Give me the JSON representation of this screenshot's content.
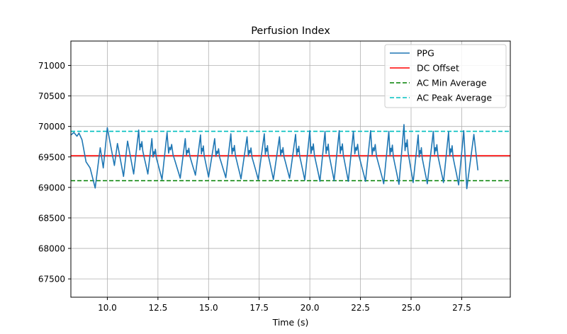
{
  "chart_data": {
    "type": "line",
    "title": "Perfusion Index",
    "xlabel": "Time (s)",
    "ylabel": "",
    "xlim": [
      8.2,
      29.9
    ],
    "ylim": [
      67200,
      71400
    ],
    "xticks": [
      10.0,
      12.5,
      15.0,
      17.5,
      20.0,
      22.5,
      25.0,
      27.5
    ],
    "xtick_labels": [
      "10.0",
      "12.5",
      "15.0",
      "17.5",
      "20.0",
      "22.5",
      "25.0",
      "27.5"
    ],
    "yticks": [
      67500,
      68000,
      68500,
      69000,
      69500,
      70000,
      70500,
      71000
    ],
    "ytick_labels": [
      "67500",
      "68000",
      "68500",
      "69000",
      "69500",
      "70000",
      "70500",
      "71000"
    ],
    "grid": true,
    "legend_position": "top-right",
    "colors": {
      "ppg": "#1f77b4",
      "dc_offset": "#ff0000",
      "ac_min": "#008000",
      "ac_peak": "#00bfbf"
    },
    "series": [
      {
        "name": "PPG",
        "style": "solid",
        "peaks": [
          {
            "t": 9.65,
            "v": 69650
          },
          {
            "t": 10.0,
            "v": 69980
          },
          {
            "t": 10.5,
            "v": 69720
          },
          {
            "t": 11.0,
            "v": 69760
          },
          {
            "t": 11.55,
            "v": 69940
          },
          {
            "t": 12.2,
            "v": 69800
          },
          {
            "t": 12.95,
            "v": 69900
          },
          {
            "t": 13.85,
            "v": 69800
          },
          {
            "t": 14.6,
            "v": 69860
          },
          {
            "t": 15.3,
            "v": 69800
          },
          {
            "t": 16.1,
            "v": 69880
          },
          {
            "t": 16.9,
            "v": 69830
          },
          {
            "t": 17.75,
            "v": 69880
          },
          {
            "t": 18.5,
            "v": 69830
          },
          {
            "t": 19.3,
            "v": 69870
          },
          {
            "t": 20.0,
            "v": 69930
          },
          {
            "t": 20.75,
            "v": 69920
          },
          {
            "t": 21.45,
            "v": 69930
          },
          {
            "t": 22.15,
            "v": 69920
          },
          {
            "t": 23.0,
            "v": 69930
          },
          {
            "t": 23.9,
            "v": 69920
          },
          {
            "t": 24.65,
            "v": 70030
          },
          {
            "t": 25.35,
            "v": 69860
          },
          {
            "t": 26.1,
            "v": 69920
          },
          {
            "t": 26.85,
            "v": 69910
          },
          {
            "t": 27.6,
            "v": 69930
          },
          {
            "t": 28.1,
            "v": 69870
          }
        ],
        "troughs": [
          {
            "t": 9.4,
            "v": 68990
          },
          {
            "t": 9.8,
            "v": 69320
          },
          {
            "t": 10.35,
            "v": 69360
          },
          {
            "t": 10.8,
            "v": 69180
          },
          {
            "t": 11.3,
            "v": 69220
          },
          {
            "t": 12.0,
            "v": 69220
          },
          {
            "t": 12.7,
            "v": 69130
          },
          {
            "t": 13.6,
            "v": 69150
          },
          {
            "t": 14.35,
            "v": 69200
          },
          {
            "t": 15.0,
            "v": 69170
          },
          {
            "t": 15.85,
            "v": 69160
          },
          {
            "t": 16.6,
            "v": 69140
          },
          {
            "t": 17.45,
            "v": 69130
          },
          {
            "t": 18.2,
            "v": 69130
          },
          {
            "t": 19.0,
            "v": 69150
          },
          {
            "t": 19.75,
            "v": 69120
          },
          {
            "t": 20.5,
            "v": 69100
          },
          {
            "t": 21.2,
            "v": 69110
          },
          {
            "t": 21.9,
            "v": 69100
          },
          {
            "t": 22.75,
            "v": 69100
          },
          {
            "t": 23.65,
            "v": 69060
          },
          {
            "t": 24.4,
            "v": 69050
          },
          {
            "t": 25.1,
            "v": 69080
          },
          {
            "t": 25.8,
            "v": 69060
          },
          {
            "t": 26.6,
            "v": 69080
          },
          {
            "t": 27.35,
            "v": 69040
          },
          {
            "t": 27.75,
            "v": 68980
          },
          {
            "t": 28.3,
            "v": 69280
          }
        ],
        "start": {
          "t": 8.2,
          "v": 69860
        }
      },
      {
        "name": "DC Offset",
        "style": "solid",
        "y": 69520
      },
      {
        "name": "AC Min Average",
        "style": "dashed",
        "y": 69110
      },
      {
        "name": "AC Peak Average",
        "style": "dashed",
        "y": 69920
      }
    ]
  }
}
